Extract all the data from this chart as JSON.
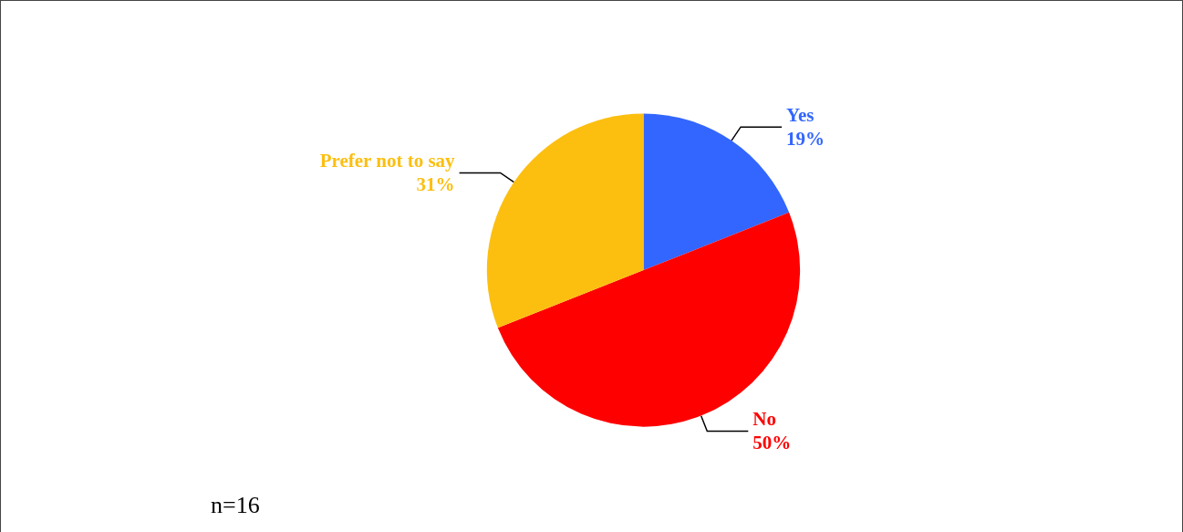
{
  "chart_data": {
    "type": "pie",
    "categories": [
      "Yes",
      "No",
      "Prefer not to say"
    ],
    "values": [
      19,
      50,
      31
    ],
    "value_labels": [
      "19%",
      "50%",
      "31%"
    ],
    "colors": [
      "#3366ff",
      "#ff0000",
      "#fcbf10"
    ],
    "annotations": [
      "n=16"
    ],
    "legend": false
  }
}
